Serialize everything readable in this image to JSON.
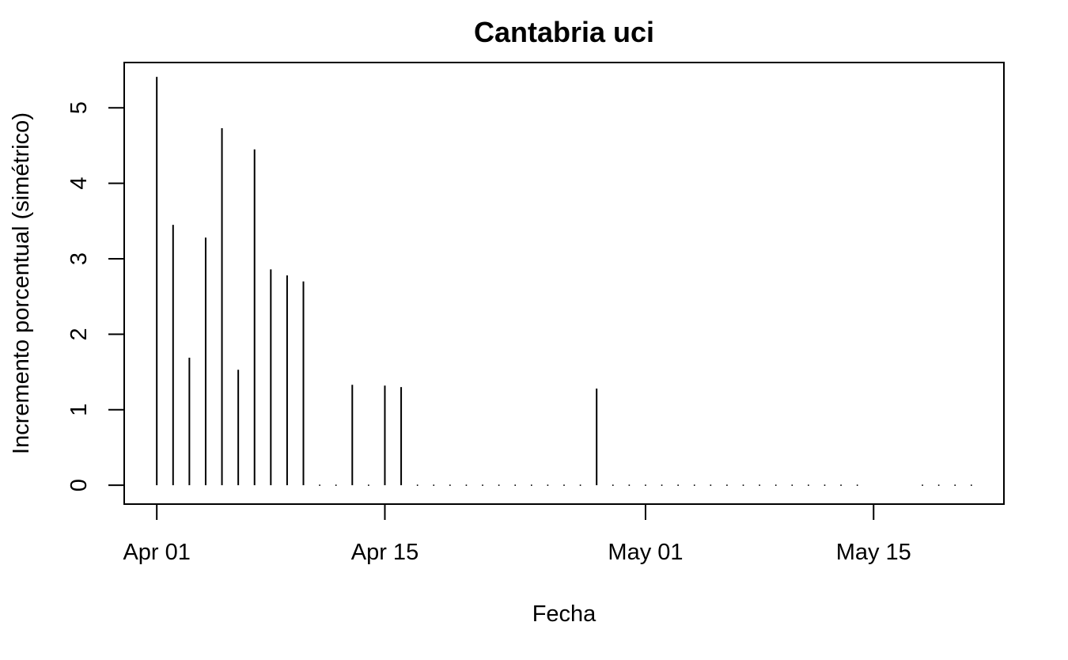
{
  "chart_data": {
    "type": "bar",
    "style": "vertical-lines",
    "title": "Cantabria uci",
    "xlabel": "Fecha",
    "ylabel": "Incremento porcentual (simétrico)",
    "x": [
      "2020-04-01",
      "2020-04-02",
      "2020-04-03",
      "2020-04-04",
      "2020-04-05",
      "2020-04-06",
      "2020-04-07",
      "2020-04-08",
      "2020-04-09",
      "2020-04-10",
      "2020-04-11",
      "2020-04-12",
      "2020-04-13",
      "2020-04-14",
      "2020-04-15",
      "2020-04-16",
      "2020-04-17",
      "2020-04-18",
      "2020-04-19",
      "2020-04-20",
      "2020-04-21",
      "2020-04-22",
      "2020-04-23",
      "2020-04-24",
      "2020-04-25",
      "2020-04-26",
      "2020-04-27",
      "2020-04-28",
      "2020-04-29",
      "2020-04-30",
      "2020-05-01",
      "2020-05-02",
      "2020-05-03",
      "2020-05-04",
      "2020-05-05",
      "2020-05-06",
      "2020-05-07",
      "2020-05-08",
      "2020-05-09",
      "2020-05-10",
      "2020-05-11",
      "2020-05-12",
      "2020-05-13",
      "2020-05-14",
      "2020-05-18",
      "2020-05-19",
      "2020-05-20",
      "2020-05-21"
    ],
    "values": [
      5.41,
      3.45,
      1.69,
      3.28,
      4.73,
      1.53,
      4.45,
      2.86,
      2.78,
      2.7,
      0,
      0,
      1.33,
      0,
      1.32,
      1.3,
      0,
      0,
      0,
      0,
      0,
      0,
      0,
      0,
      0,
      0,
      0,
      1.28,
      0,
      0,
      0,
      0,
      0,
      0,
      0,
      0,
      0,
      0,
      0,
      0,
      0,
      0,
      0,
      0,
      0,
      0,
      0,
      0
    ],
    "xlim": [
      "2020-03-30",
      "2020-05-23"
    ],
    "ylim": [
      -0.25,
      5.6
    ],
    "x_ticks": [
      {
        "date": "2020-04-01",
        "label": "Apr 01"
      },
      {
        "date": "2020-04-15",
        "label": "Apr 15"
      },
      {
        "date": "2020-05-01",
        "label": "May 01"
      },
      {
        "date": "2020-05-15",
        "label": "May 15"
      }
    ],
    "y_ticks": [
      {
        "value": 0,
        "label": "0"
      },
      {
        "value": 1,
        "label": "1"
      },
      {
        "value": 2,
        "label": "2"
      },
      {
        "value": 3,
        "label": "3"
      },
      {
        "value": 4,
        "label": "4"
      },
      {
        "value": 5,
        "label": "5"
      }
    ],
    "grid": false,
    "legend": "none",
    "color": "#000000"
  }
}
